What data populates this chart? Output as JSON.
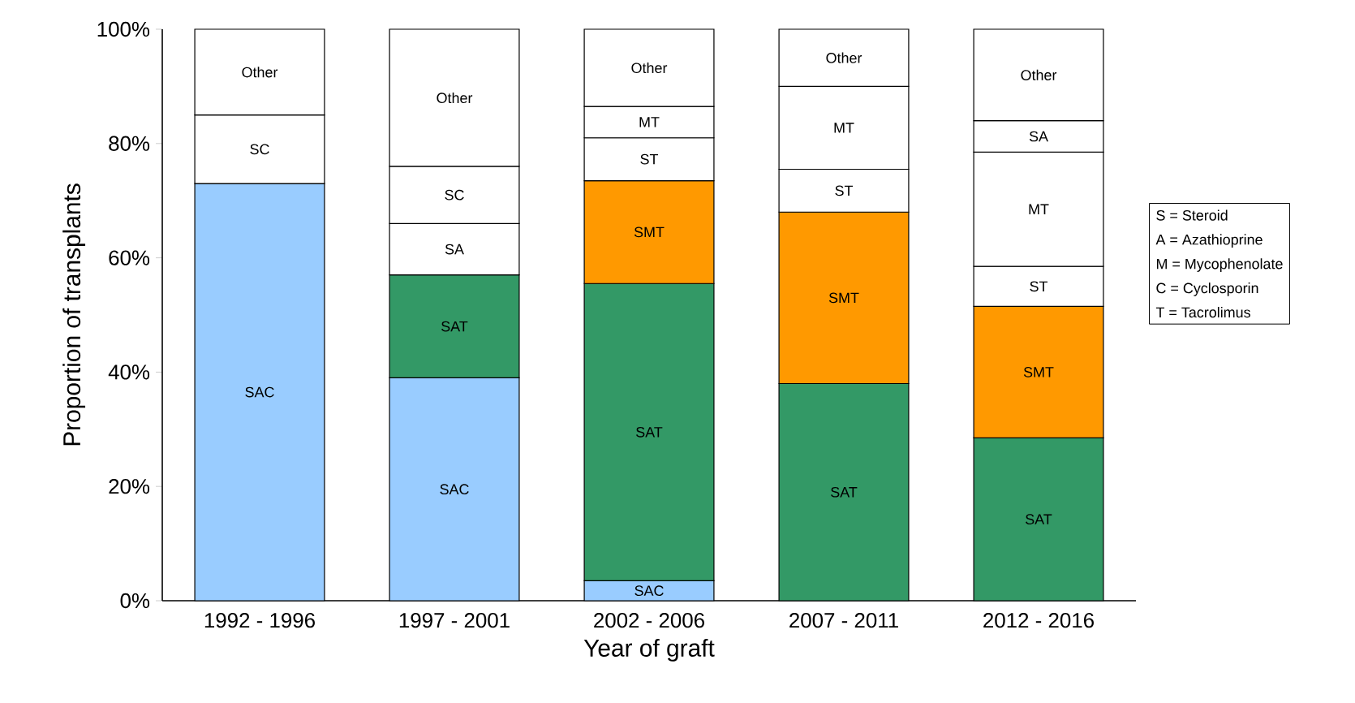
{
  "chart_data": {
    "type": "bar",
    "stacked": true,
    "xlabel": "Year of graft",
    "ylabel": "Proportion of transplants",
    "categories": [
      "1992 - 1996",
      "1997 - 2001",
      "2002 - 2006",
      "2007 - 2011",
      "2012 - 2016"
    ],
    "ylim": [
      0,
      100
    ],
    "yticks": [
      {
        "value": 0,
        "label": "0%"
      },
      {
        "value": 20,
        "label": "20%"
      },
      {
        "value": 40,
        "label": "40%"
      },
      {
        "value": 60,
        "label": "60%"
      },
      {
        "value": 80,
        "label": "80%"
      },
      {
        "value": 100,
        "label": "100%"
      }
    ],
    "series": [
      {
        "name": "SAC",
        "color": "#99ccff",
        "values": [
          73,
          39,
          3.5,
          null,
          null
        ]
      },
      {
        "name": "SAT",
        "color": "#339966",
        "values": [
          null,
          18,
          52,
          38,
          28.5
        ]
      },
      {
        "name": "SMT",
        "color": "#ff9900",
        "values": [
          null,
          null,
          18,
          30,
          23
        ]
      },
      {
        "name": "ST",
        "color": "#ffffff",
        "values": [
          null,
          null,
          7.5,
          7.5,
          7
        ]
      },
      {
        "name": "MT",
        "color": "#ffffff",
        "values": [
          null,
          null,
          5.5,
          14.5,
          20
        ]
      },
      {
        "name": "SA",
        "color": "#ffffff",
        "values": [
          null,
          9,
          null,
          null,
          5.5
        ]
      },
      {
        "name": "SC",
        "color": "#ffffff",
        "values": [
          12,
          10,
          null,
          null,
          null
        ]
      },
      {
        "name": "Other",
        "color": "#ffffff",
        "values": [
          15,
          24,
          13.5,
          10,
          16
        ]
      }
    ],
    "annotations": [
      "S = Steroid",
      "A = Azathioprine",
      "M = Mycophenolate",
      "C = Cyclosporin",
      "T = Tacrolimus"
    ]
  }
}
